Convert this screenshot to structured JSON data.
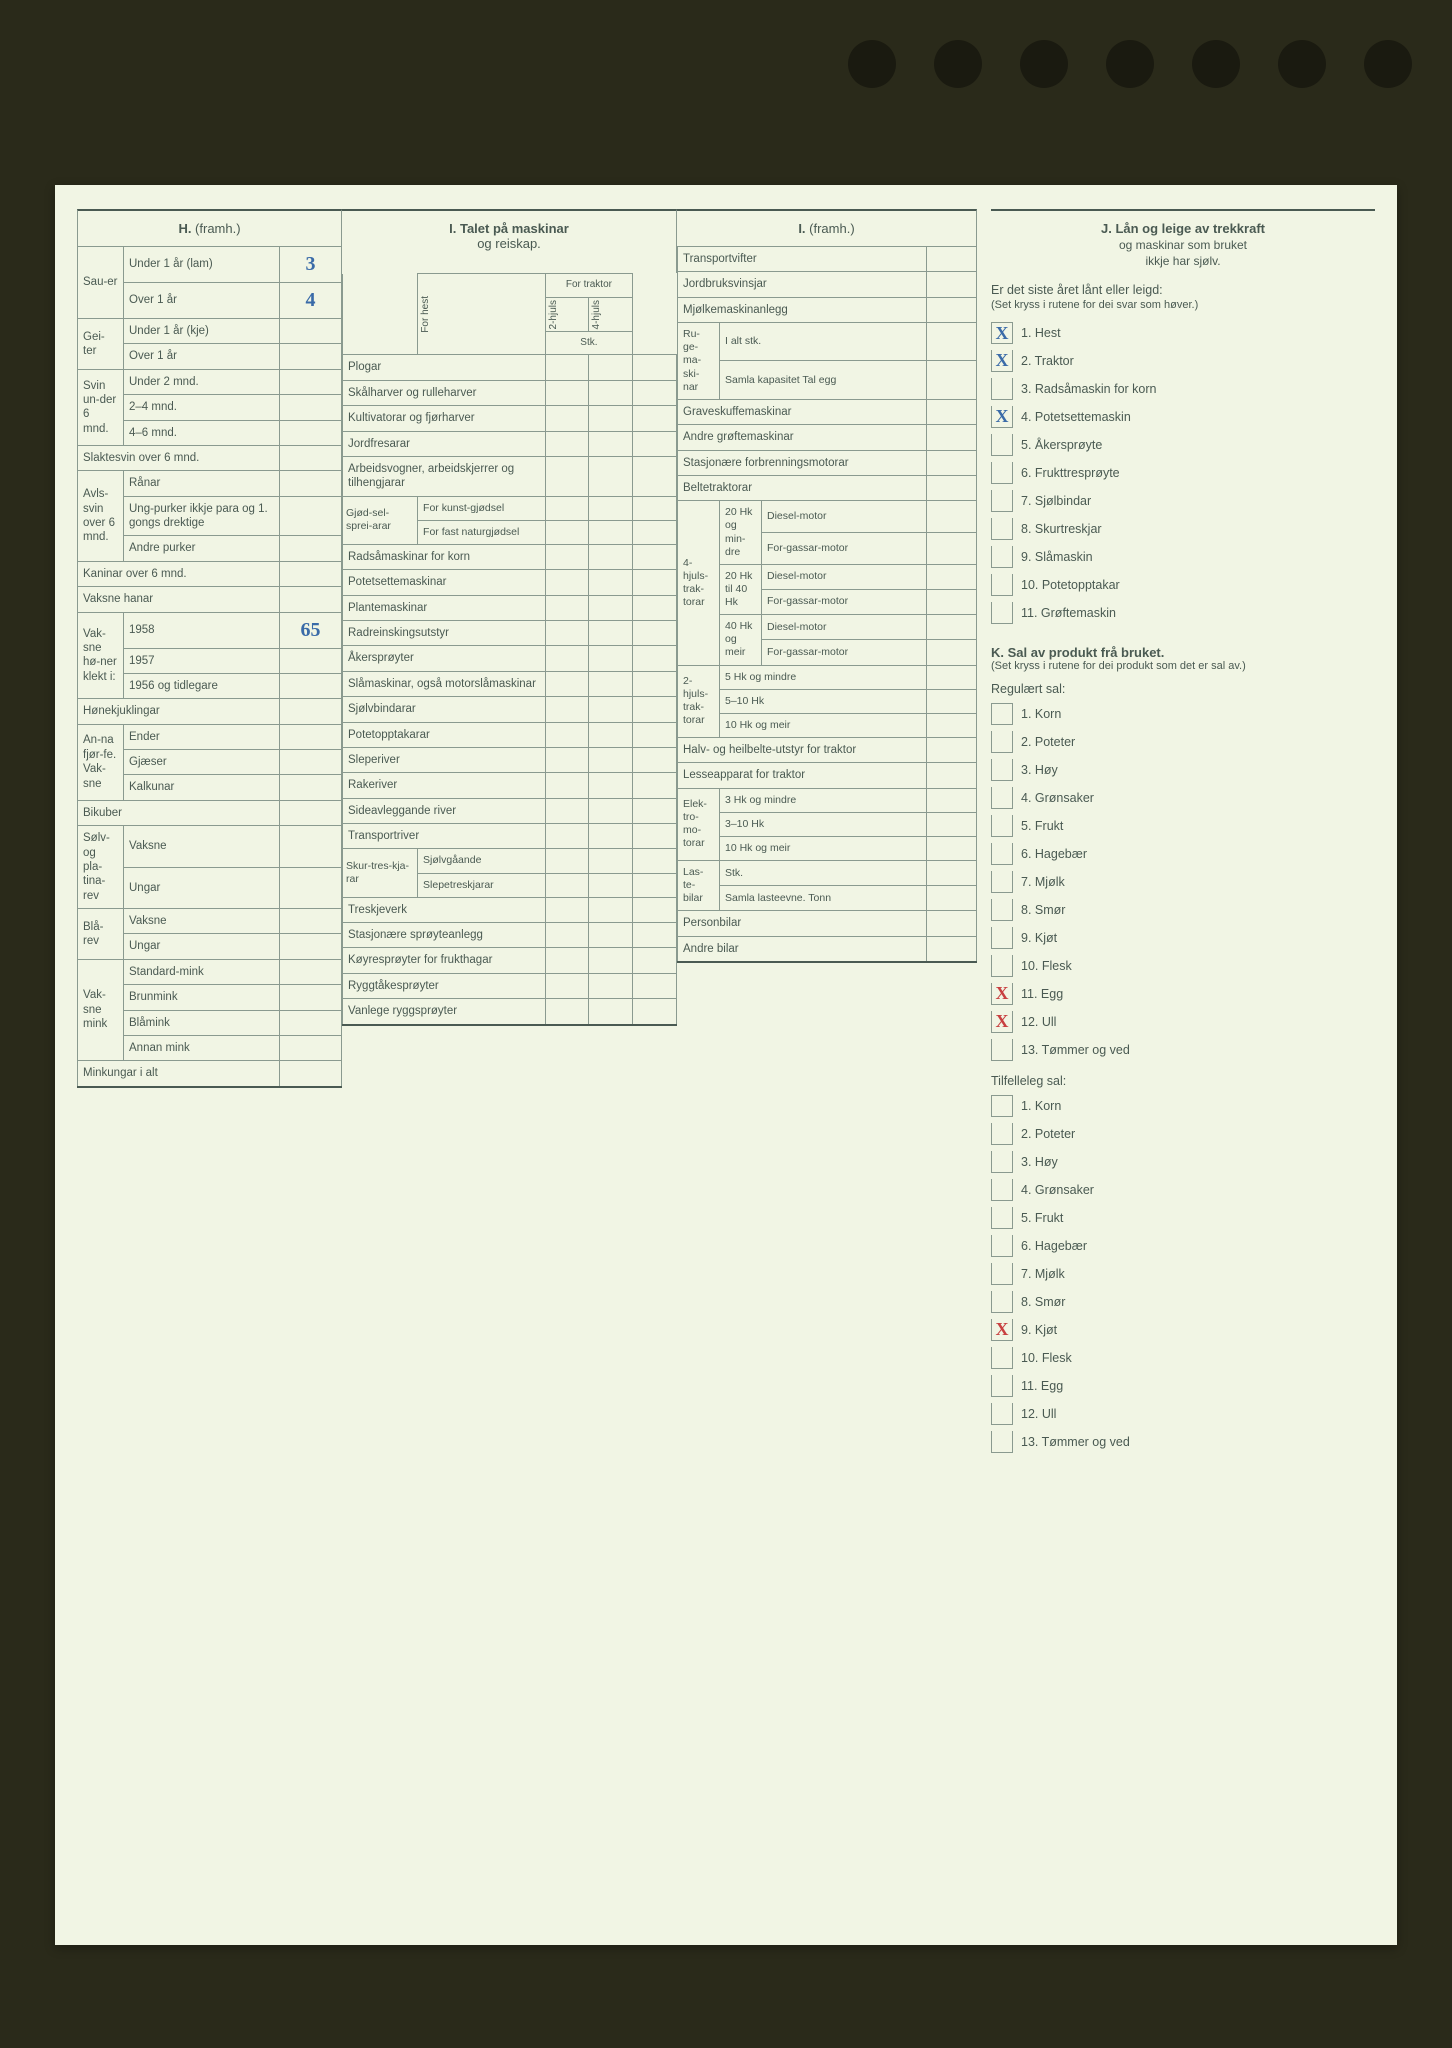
{
  "sectionH": {
    "title_bold": "H.",
    "title_rest": " (framh.)",
    "groups": [
      {
        "label": "Sau-er",
        "rows": [
          {
            "sub": "Under 1 år (lam)",
            "val": "3"
          },
          {
            "sub": "Over 1 år",
            "val": "4"
          }
        ]
      },
      {
        "label": "Gei-ter",
        "rows": [
          {
            "sub": "Under 1 år (kje)",
            "val": ""
          },
          {
            "sub": "Over 1 år",
            "val": ""
          }
        ]
      },
      {
        "label": "Svin un-der 6 mnd.",
        "rows": [
          {
            "sub": "Under 2 mnd.",
            "val": ""
          },
          {
            "sub": "2–4 mnd.",
            "val": ""
          },
          {
            "sub": "4–6 mnd.",
            "val": ""
          }
        ]
      },
      {
        "label": "Slaktesvin over 6 mnd.",
        "span": true,
        "val": ""
      },
      {
        "label": "Avls-svin over 6 mnd.",
        "rows": [
          {
            "sub": "Rånar",
            "val": ""
          },
          {
            "sub": "Ung-purker ikkje para og 1. gongs drektige",
            "val": ""
          },
          {
            "sub": "Andre purker",
            "val": ""
          }
        ]
      },
      {
        "label": "Kaninar over 6 mnd.",
        "span": true,
        "val": ""
      },
      {
        "label": "Vaksne hanar",
        "span": true,
        "val": ""
      },
      {
        "label": "Vak-sne hø-ner klekt i:",
        "rows": [
          {
            "sub": "1958",
            "val": "65"
          },
          {
            "sub": "1957",
            "val": ""
          },
          {
            "sub": "1956 og tidlegare",
            "val": ""
          }
        ]
      },
      {
        "label": "Hønekjuklingar",
        "span": true,
        "val": ""
      },
      {
        "label": "An-na fjør-fe. Vak-sne",
        "rows": [
          {
            "sub": "Ender",
            "val": ""
          },
          {
            "sub": "Gjæser",
            "val": ""
          },
          {
            "sub": "Kalkunar",
            "val": ""
          }
        ]
      },
      {
        "label": "Bikuber",
        "span": true,
        "val": ""
      },
      {
        "label": "Sølv- og pla-tina-rev",
        "rows": [
          {
            "sub": "Vaksne",
            "val": ""
          },
          {
            "sub": "Ungar",
            "val": ""
          }
        ]
      },
      {
        "label": "Blå-rev",
        "rows": [
          {
            "sub": "Vaksne",
            "val": ""
          },
          {
            "sub": "Ungar",
            "val": ""
          }
        ]
      },
      {
        "label": "Vak-sne mink",
        "rows": [
          {
            "sub": "Standard-mink",
            "val": ""
          },
          {
            "sub": "Brunmink",
            "val": ""
          },
          {
            "sub": "Blåmink",
            "val": ""
          },
          {
            "sub": "Annan mink",
            "val": ""
          }
        ]
      },
      {
        "label": "Minkungar i alt",
        "span": true,
        "val": ""
      }
    ]
  },
  "sectionI": {
    "title_bold": "I. Talet på maskinar",
    "title_line2": "og reiskap.",
    "colheads": {
      "forhest": "For hest",
      "fortraktor": "For traktor",
      "h2": "2-hjuls",
      "h4": "4-hjuls",
      "stk": "Stk."
    },
    "rows": [
      {
        "label": "Plogar"
      },
      {
        "label": "Skålharver og rulleharver"
      },
      {
        "label": "Kultivatorar og fjørharver"
      },
      {
        "label": "Jordfresarar"
      },
      {
        "label": "Arbeidsvogner, arbeidskjerrer og tilhengjarar"
      },
      {
        "grouplabel": "Gjød-sel-sprei-arar",
        "subrows": [
          {
            "sub": "For kunst-gjødsel"
          },
          {
            "sub": "For fast naturgjødsel"
          }
        ]
      },
      {
        "label": "Radsåmaskinar for korn"
      },
      {
        "label": "Potetsettemaskinar"
      },
      {
        "label": "Plantemaskinar"
      },
      {
        "label": "Radreinskingsutstyr"
      },
      {
        "label": "Åkersprøyter"
      },
      {
        "label": "Slåmaskinar, også motorslåmaskinar"
      },
      {
        "label": "Sjølvbindarar"
      },
      {
        "label": "Potetopptakarar"
      },
      {
        "label": "Sleperiver"
      },
      {
        "label": "Rakeriver"
      },
      {
        "label": "Sideavleggande river"
      },
      {
        "label": "Transportriver"
      },
      {
        "grouplabel": "Skur-tres-kja-rar",
        "subrows": [
          {
            "sub": "Sjølvgåande"
          },
          {
            "sub": "Slepetreskjarar"
          }
        ]
      },
      {
        "label": "Treskjeverk"
      },
      {
        "label": "Stasjonære sprøyteanlegg"
      },
      {
        "label": "Køyresprøyter for frukthagar"
      },
      {
        "label": "Ryggtåkesprøyter"
      },
      {
        "label": "Vanlege ryggsprøyter"
      }
    ]
  },
  "sectionI2": {
    "title_bold": "I.",
    "title_rest": " (framh.)",
    "rows_top": [
      {
        "label": "Transportvifter"
      },
      {
        "label": "Jordbruksvinsjar"
      },
      {
        "label": "Mjølkemaskinanlegg"
      }
    ],
    "ruge": {
      "label": "Ru-ge-ma-ski-nar",
      "subrows": [
        {
          "sub": "I alt stk."
        },
        {
          "sub": "Samla kapasitet Tal egg"
        }
      ]
    },
    "rows_mid": [
      {
        "label": "Graveskuffemaskinar"
      },
      {
        "label": "Andre grøftemaskinar"
      },
      {
        "label": "Stasjonære forbrenningsmotorar"
      },
      {
        "label": "Beltetraktorar"
      }
    ],
    "hjuls4": {
      "label": "4-hjuls-trak-torar",
      "groups": [
        {
          "g": "20 Hk og min-dre",
          "subs": [
            "Diesel-motor",
            "For-gassar-motor"
          ]
        },
        {
          "g": "20 Hk til 40 Hk",
          "subs": [
            "Diesel-motor",
            "For-gassar-motor"
          ]
        },
        {
          "g": "40 Hk og meir",
          "subs": [
            "Diesel-motor",
            "For-gassar-motor"
          ]
        }
      ]
    },
    "hjuls2": {
      "label": "2-hjuls-trak-torar",
      "subs": [
        "5 Hk og mindre",
        "5–10 Hk",
        "10 Hk og meir"
      ]
    },
    "rows_bot": [
      {
        "label": "Halv- og heilbelte-utstyr for traktor"
      },
      {
        "label": "Lesseapparat for traktor"
      }
    ],
    "elektro": {
      "label": "Elek-tro-mo-torar",
      "subs": [
        "3 Hk og mindre",
        "3–10 Hk",
        "10 Hk og meir"
      ]
    },
    "laste": {
      "label": "Las-te-bilar",
      "subs": [
        "Stk.",
        "Samla lasteevne. Tonn"
      ]
    },
    "rows_last": [
      {
        "label": "Personbilar"
      },
      {
        "label": "Andre bilar"
      }
    ]
  },
  "sectionJ": {
    "title": "J. Lån og leige av trekkraft og maskinar som bruket ikkje har sjølv.",
    "prompt": "Er det siste året lånt eller leigd:",
    "hint": "(Set kryss i rutene for dei svar som høver.)",
    "items": [
      {
        "n": "1.",
        "t": "Hest",
        "mark": "X",
        "color": "blue"
      },
      {
        "n": "2.",
        "t": "Traktor",
        "mark": "X",
        "color": "blue"
      },
      {
        "n": "3.",
        "t": "Radsåmaskin for korn",
        "mark": ""
      },
      {
        "n": "4.",
        "t": "Potetsettemaskin",
        "mark": "X",
        "color": "blue"
      },
      {
        "n": "5.",
        "t": "Åkersprøyte",
        "mark": ""
      },
      {
        "n": "6.",
        "t": "Frukttresprøyte",
        "mark": ""
      },
      {
        "n": "7.",
        "t": "Sjølbindar",
        "mark": ""
      },
      {
        "n": "8.",
        "t": "Skurtreskjar",
        "mark": ""
      },
      {
        "n": "9.",
        "t": "Slåmaskin",
        "mark": ""
      },
      {
        "n": "10.",
        "t": "Potetopptakar",
        "mark": ""
      },
      {
        "n": "11.",
        "t": "Grøftemaskin",
        "mark": ""
      }
    ]
  },
  "sectionK": {
    "title": "K. Sal av produkt frå bruket.",
    "hint": "(Set kryss i rutene for dei produkt som det er sal av.)",
    "sub1": "Regulært sal:",
    "items1": [
      {
        "n": "1.",
        "t": "Korn",
        "mark": ""
      },
      {
        "n": "2.",
        "t": "Poteter",
        "mark": ""
      },
      {
        "n": "3.",
        "t": "Høy",
        "mark": ""
      },
      {
        "n": "4.",
        "t": "Grønsaker",
        "mark": ""
      },
      {
        "n": "5.",
        "t": "Frukt",
        "mark": ""
      },
      {
        "n": "6.",
        "t": "Hagebær",
        "mark": ""
      },
      {
        "n": "7.",
        "t": "Mjølk",
        "mark": ""
      },
      {
        "n": "8.",
        "t": "Smør",
        "mark": ""
      },
      {
        "n": "9.",
        "t": "Kjøt",
        "mark": ""
      },
      {
        "n": "10.",
        "t": "Flesk",
        "mark": ""
      },
      {
        "n": "11.",
        "t": "Egg",
        "mark": "X",
        "color": "red"
      },
      {
        "n": "12.",
        "t": "Ull",
        "mark": "X",
        "color": "red"
      },
      {
        "n": "13.",
        "t": "Tømmer og ved",
        "mark": ""
      }
    ],
    "sub2": "Tilfelleleg sal:",
    "items2": [
      {
        "n": "1.",
        "t": "Korn",
        "mark": ""
      },
      {
        "n": "2.",
        "t": "Poteter",
        "mark": ""
      },
      {
        "n": "3.",
        "t": "Høy",
        "mark": ""
      },
      {
        "n": "4.",
        "t": "Grønsaker",
        "mark": ""
      },
      {
        "n": "5.",
        "t": "Frukt",
        "mark": ""
      },
      {
        "n": "6.",
        "t": "Hagebær",
        "mark": ""
      },
      {
        "n": "7.",
        "t": "Mjølk",
        "mark": ""
      },
      {
        "n": "8.",
        "t": "Smør",
        "mark": ""
      },
      {
        "n": "9.",
        "t": "Kjøt",
        "mark": "X",
        "color": "red"
      },
      {
        "n": "10.",
        "t": "Flesk",
        "mark": ""
      },
      {
        "n": "11.",
        "t": "Egg",
        "mark": ""
      },
      {
        "n": "12.",
        "t": "Ull",
        "mark": ""
      },
      {
        "n": "13.",
        "t": "Tømmer og ved",
        "mark": ""
      }
    ]
  }
}
